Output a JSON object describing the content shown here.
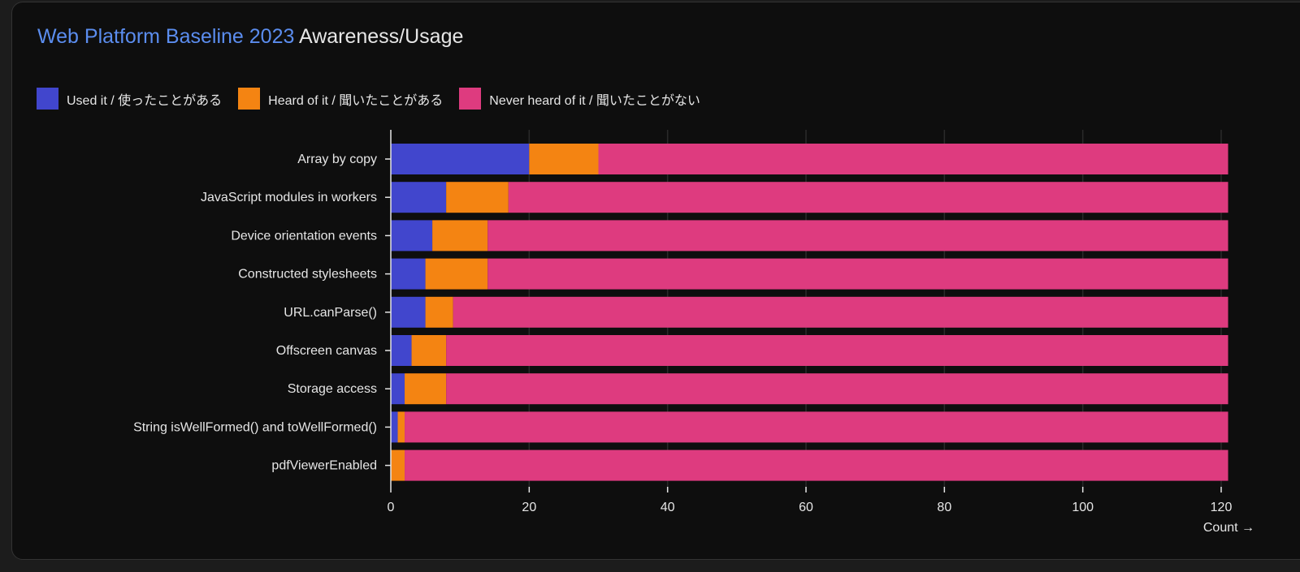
{
  "chart_data": {
    "type": "bar",
    "orientation": "horizontal",
    "stacked": true,
    "title_highlight": "Web Platform Baseline 2023",
    "title_rest": "Awareness/Usage",
    "xlabel": "Count →",
    "ylabel": "",
    "xlim": [
      0,
      121
    ],
    "xticks": [
      0,
      20,
      40,
      60,
      80,
      100,
      120
    ],
    "grid": "vertical",
    "legend_position": "top-left",
    "categories": [
      "Array by copy",
      "JavaScript modules in workers",
      "Device orientation events",
      "Constructed stylesheets",
      "URL.canParse()",
      "Offscreen canvas",
      "Storage access",
      "String isWellFormed() and toWellFormed()",
      "pdfViewerEnabled"
    ],
    "series": [
      {
        "name": "Used it / 使ったことがある",
        "color": "#4146cd",
        "values": [
          20,
          8,
          6,
          5,
          5,
          3,
          2,
          1,
          0
        ]
      },
      {
        "name": "Heard of it / 聞いたことがある",
        "color": "#f48412",
        "values": [
          10,
          9,
          8,
          9,
          4,
          5,
          6,
          1,
          2
        ]
      },
      {
        "name": "Never heard of it / 聞いたことがない",
        "color": "#de3b7f",
        "values": [
          91,
          104,
          107,
          107,
          112,
          113,
          113,
          119,
          119
        ]
      }
    ]
  }
}
